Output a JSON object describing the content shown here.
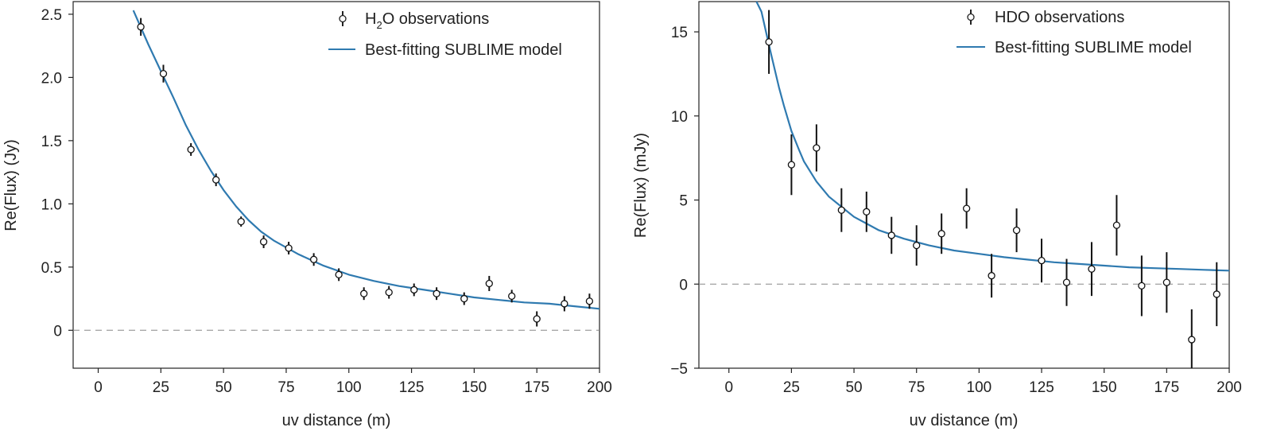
{
  "chart_data": [
    {
      "type": "scatter",
      "id": "h2o",
      "xlabel": "uv distance (m)",
      "ylabel": "Re(Flux) (Jy)",
      "xlim": [
        -10,
        200
      ],
      "ylim": [
        -0.3,
        2.6
      ],
      "xticks": [
        0,
        25,
        50,
        75,
        100,
        125,
        150,
        175,
        200
      ],
      "xtick_labels": [
        "0",
        "25",
        "50",
        "75",
        "100",
        "125",
        "150",
        "175",
        "200"
      ],
      "yticks": [
        0,
        0.5,
        1.0,
        1.5,
        2.0,
        2.5
      ],
      "ytick_labels": [
        "0",
        "0.5",
        "1.0",
        "1.5",
        "2.0",
        "2.5"
      ],
      "zero_line": true,
      "legend": {
        "placement": "upper-right",
        "observations": "H2O observations",
        "model": "Best-fitting SUBLIME model"
      },
      "series": [
        {
          "name": "H2O observations",
          "kind": "errorbar",
          "x": [
            17,
            26,
            37,
            47,
            57,
            66,
            76,
            86,
            96,
            106,
            116,
            126,
            135,
            146,
            156,
            165,
            175,
            186,
            196
          ],
          "y": [
            2.4,
            2.03,
            1.43,
            1.19,
            0.86,
            0.7,
            0.65,
            0.56,
            0.44,
            0.29,
            0.3,
            0.32,
            0.29,
            0.25,
            0.37,
            0.27,
            0.09,
            0.21,
            0.23
          ],
          "yerr": [
            0.07,
            0.07,
            0.05,
            0.05,
            0.04,
            0.05,
            0.05,
            0.05,
            0.05,
            0.05,
            0.05,
            0.05,
            0.05,
            0.05,
            0.06,
            0.05,
            0.06,
            0.06,
            0.06
          ]
        },
        {
          "name": "Best-fitting SUBLIME model",
          "kind": "line",
          "color": "#2f7ab0",
          "x": [
            14,
            20,
            25,
            30,
            35,
            40,
            45,
            50,
            55,
            60,
            65,
            70,
            80,
            90,
            100,
            110,
            120,
            130,
            140,
            150,
            160,
            170,
            180,
            190,
            200
          ],
          "y": [
            2.53,
            2.26,
            2.05,
            1.84,
            1.62,
            1.43,
            1.26,
            1.11,
            0.98,
            0.87,
            0.78,
            0.71,
            0.6,
            0.51,
            0.44,
            0.39,
            0.35,
            0.32,
            0.29,
            0.26,
            0.24,
            0.22,
            0.21,
            0.19,
            0.17
          ]
        }
      ]
    },
    {
      "type": "scatter",
      "id": "hdo",
      "xlabel": "uv distance (m)",
      "ylabel": "Re(Flux) (mJy)",
      "xlim": [
        -12,
        200
      ],
      "ylim": [
        -5,
        16.8
      ],
      "xticks": [
        0,
        25,
        50,
        75,
        100,
        125,
        150,
        175,
        200
      ],
      "xtick_labels": [
        "0",
        "25",
        "50",
        "75",
        "100",
        "125",
        "150",
        "175",
        "200"
      ],
      "yticks": [
        -5,
        0,
        5,
        10,
        15
      ],
      "ytick_labels": [
        "−5",
        "0",
        "5",
        "10",
        "15"
      ],
      "zero_line": true,
      "legend": {
        "placement": "upper-right",
        "observations": "HDO observations",
        "model": "Best-fitting SUBLIME model"
      },
      "series": [
        {
          "name": "HDO observations",
          "kind": "errorbar",
          "x": [
            16,
            25,
            35,
            45,
            55,
            65,
            75,
            85,
            95,
            105,
            115,
            125,
            135,
            145,
            155,
            165,
            175,
            185,
            195
          ],
          "y": [
            14.4,
            7.1,
            8.1,
            4.4,
            4.3,
            2.9,
            2.3,
            3.0,
            4.5,
            0.5,
            3.2,
            1.4,
            0.1,
            0.9,
            3.5,
            -0.1,
            0.1,
            -3.3,
            -0.6
          ],
          "yerr": [
            1.9,
            1.8,
            1.4,
            1.3,
            1.2,
            1.1,
            1.2,
            1.2,
            1.2,
            1.3,
            1.3,
            1.3,
            1.4,
            1.6,
            1.8,
            1.8,
            1.8,
            1.8,
            1.9
          ]
        },
        {
          "name": "Best-fitting SUBLIME model",
          "kind": "line",
          "color": "#2f7ab0",
          "x": [
            11,
            13,
            15,
            17,
            20,
            22,
            25,
            28,
            30,
            35,
            40,
            45,
            50,
            55,
            60,
            70,
            80,
            90,
            100,
            110,
            120,
            130,
            140,
            150,
            160,
            170,
            180,
            190,
            200
          ],
          "y": [
            16.8,
            16.2,
            14.9,
            13.6,
            11.7,
            10.6,
            9.1,
            8.0,
            7.3,
            6.1,
            5.2,
            4.6,
            4.0,
            3.6,
            3.2,
            2.7,
            2.3,
            2.0,
            1.8,
            1.6,
            1.45,
            1.3,
            1.2,
            1.1,
            1.0,
            0.95,
            0.9,
            0.85,
            0.8
          ]
        }
      ]
    }
  ]
}
